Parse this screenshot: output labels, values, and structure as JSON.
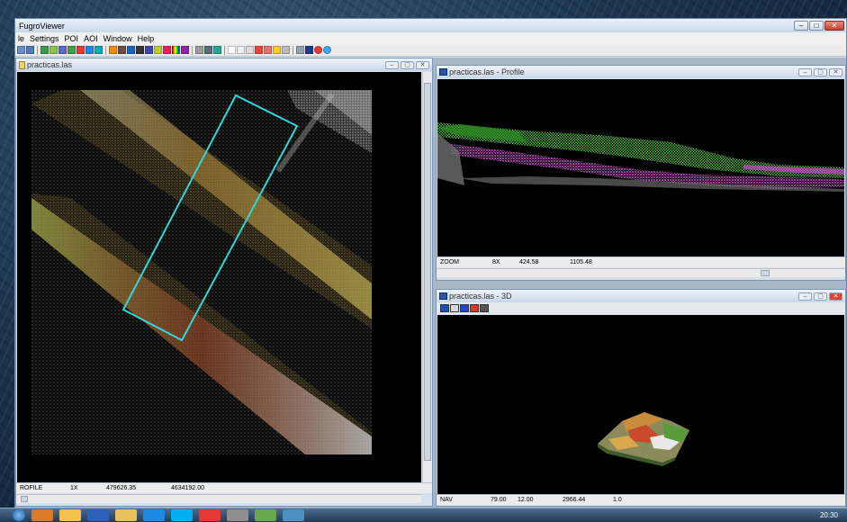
{
  "app": {
    "title": "FugroViewer"
  },
  "menu": [
    "le",
    "Settings",
    "POI",
    "AOI",
    "Window",
    "Help"
  ],
  "toolbar_icons": [
    "open-icon",
    "save-icon",
    "layer-icon",
    "color-icon",
    "grid-icon",
    "ruler-icon",
    "profile-icon",
    "zoom-icon",
    "select-icon",
    "info-icon",
    "settings-icon",
    "3d-icon"
  ],
  "plan_window": {
    "title": "practicas.las",
    "status": {
      "mode": "ROFILE",
      "zoom": "1X",
      "x": "479626.35",
      "y": "4634192.00"
    }
  },
  "profile_window": {
    "title": "practicas.las - Profile",
    "status": {
      "mode": "ZOOM",
      "zoom": "8X",
      "a": "424.58",
      "b": "1105.48"
    }
  },
  "view3d_window": {
    "title": "practicas.las - 3D",
    "status": {
      "mode": "NAV",
      "a": "79.00",
      "b": "12.00",
      "c": "2966.44",
      "d": "1.0"
    }
  },
  "system": {
    "clock": "20:30"
  },
  "colors": {
    "accent_selection": "#33d6d6",
    "profile_green": "#3ca82f",
    "profile_magenta": "#d04ad0"
  }
}
